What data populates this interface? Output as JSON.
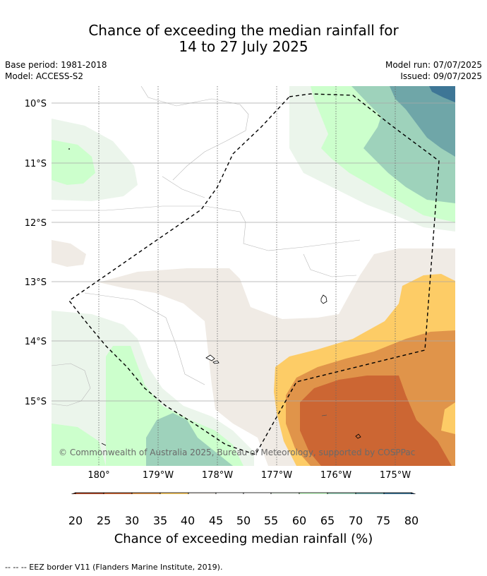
{
  "title_line1": "Chance of exceeding the median rainfall for",
  "title_line2": "14 to 27 July 2025",
  "meta": {
    "base_period": "Base period: 1981-2018",
    "model": "Model: ACCESS-S2",
    "model_run": "Model run: 07/07/2025",
    "issued": "Issued: 09/07/2025"
  },
  "map": {
    "lat_labels": [
      "10°S",
      "11°S",
      "12°S",
      "13°S",
      "14°S",
      "15°S"
    ],
    "lon_labels": [
      "180°",
      "179°W",
      "178°W",
      "177°W",
      "176°W",
      "175°W"
    ],
    "copyright": "© Commonwealth of Australia 2025, Bureau of Meteorology, supported by COSPPac"
  },
  "colorbar": {
    "title": "Chance of exceeding median rainfall (%)",
    "ticks": [
      "20",
      "25",
      "30",
      "35",
      "40",
      "45",
      "50",
      "55",
      "60",
      "65",
      "70",
      "75",
      "80"
    ],
    "colors": {
      "below20": "#8c3a1f",
      "c20_25": "#b24a29",
      "c25_30": "#cc6633",
      "c30_35": "#e0944a",
      "c35_40": "#fdcc66",
      "c40_45": "#f0ebe5",
      "c45_50": "#ffffff",
      "c50_55": "#ffffff",
      "c55_60": "#ebf5eb",
      "c60_65": "#ccffcc",
      "c65_70": "#9ed2bb",
      "c70_75": "#6fa6a8",
      "c75_80": "#3e7696",
      "above80": "#1d4f8a"
    }
  },
  "footer": "-- -- -- EEZ border V11 (Flanders Marine Institute, 2019)."
}
